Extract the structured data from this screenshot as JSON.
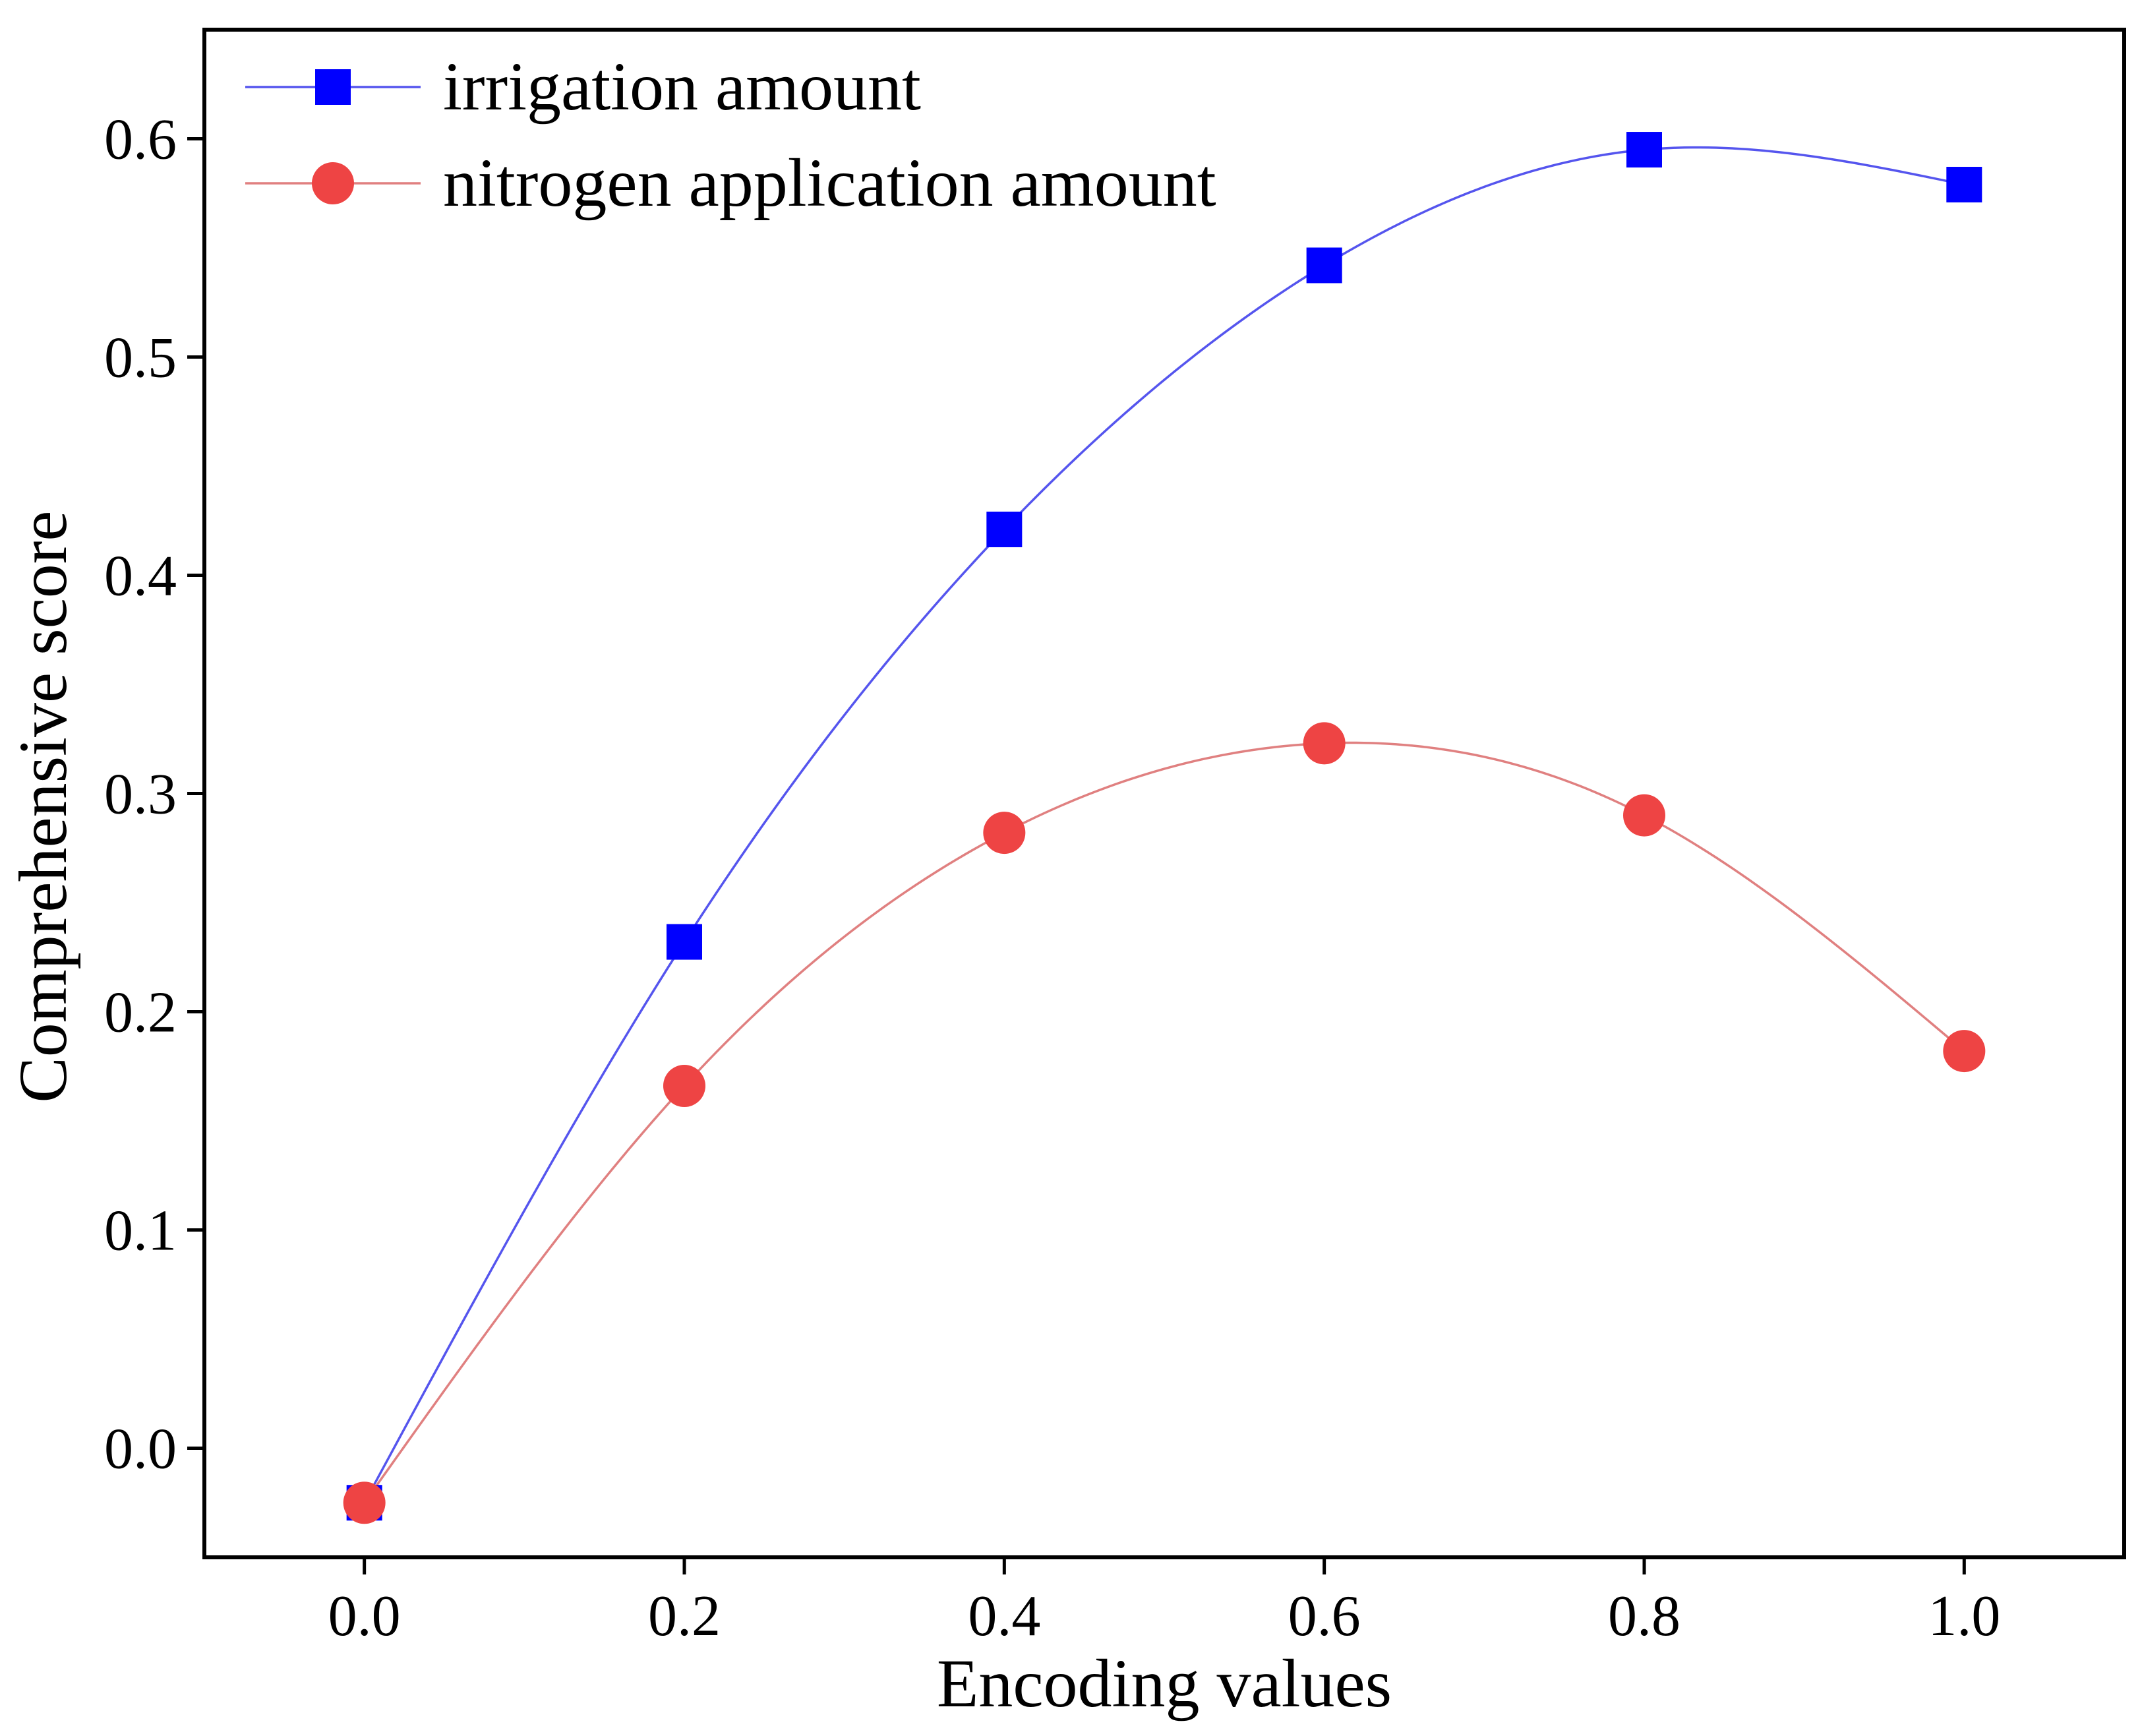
{
  "chart_data": {
    "type": "line",
    "title": "",
    "xlabel": "Encoding values",
    "ylabel": "Comprehensive score",
    "xlim": [
      -0.1,
      1.1
    ],
    "ylim": [
      -0.05,
      0.65
    ],
    "xticks": [
      0.0,
      0.2,
      0.4,
      0.6,
      0.8,
      1.0
    ],
    "xtick_labels": [
      "0.0",
      "0.2",
      "0.4",
      "0.6",
      "0.8",
      "1.0"
    ],
    "yticks": [
      0.0,
      0.1,
      0.2,
      0.3,
      0.4,
      0.5,
      0.6
    ],
    "ytick_labels": [
      "0.0",
      "0.1",
      "0.2",
      "0.3",
      "0.4",
      "0.5",
      "0.6"
    ],
    "grid": false,
    "legend_position": "top-left",
    "x": [
      0.0,
      0.2,
      0.4,
      0.6,
      0.8,
      1.0
    ],
    "series": [
      {
        "name": "irrigation amount",
        "marker": "square",
        "color": "#0000ff",
        "line_color": "#5555ee",
        "values": [
          -0.025,
          0.232,
          0.421,
          0.542,
          0.595,
          0.579
        ]
      },
      {
        "name": "nitrogen application amount",
        "marker": "circle",
        "color": "#ee4444",
        "line_color": "#e08080",
        "values": [
          -0.025,
          0.166,
          0.282,
          0.323,
          0.29,
          0.182
        ]
      }
    ]
  }
}
